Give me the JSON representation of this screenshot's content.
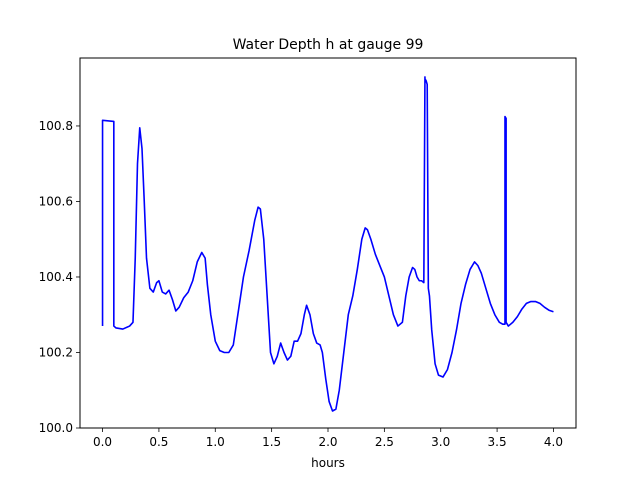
{
  "chart_data": {
    "type": "line",
    "title": "Water Depth h at gauge 99",
    "xlabel": "hours",
    "ylabel": "",
    "xlim": [
      -0.2,
      4.2
    ],
    "ylim": [
      100.0,
      100.98
    ],
    "grid": false,
    "xticks": [
      0.0,
      0.5,
      1.0,
      1.5,
      2.0,
      2.5,
      3.0,
      3.5,
      4.0
    ],
    "xtick_labels": [
      "0.0",
      "0.5",
      "1.0",
      "1.5",
      "2.0",
      "2.5",
      "3.0",
      "3.5",
      "4.0"
    ],
    "yticks": [
      100.0,
      100.2,
      100.4,
      100.6,
      100.8
    ],
    "ytick_labels": [
      "100.0",
      "100.2",
      "100.4",
      "100.6",
      "100.8"
    ],
    "series": [
      {
        "color": "#0000ff",
        "x": [
          0.0,
          0.0,
          0.1,
          0.1,
          0.12,
          0.18,
          0.24,
          0.27,
          0.29,
          0.31,
          0.33,
          0.35,
          0.37,
          0.39,
          0.42,
          0.45,
          0.48,
          0.5,
          0.53,
          0.56,
          0.59,
          0.62,
          0.65,
          0.68,
          0.72,
          0.76,
          0.8,
          0.84,
          0.88,
          0.91,
          0.93,
          0.96,
          1.0,
          1.04,
          1.08,
          1.12,
          1.16,
          1.2,
          1.25,
          1.3,
          1.35,
          1.38,
          1.4,
          1.43,
          1.46,
          1.49,
          1.52,
          1.55,
          1.58,
          1.61,
          1.64,
          1.67,
          1.7,
          1.73,
          1.76,
          1.79,
          1.81,
          1.84,
          1.87,
          1.9,
          1.93,
          1.95,
          1.98,
          2.01,
          2.04,
          2.07,
          2.1,
          2.14,
          2.18,
          2.22,
          2.26,
          2.3,
          2.33,
          2.35,
          2.38,
          2.42,
          2.46,
          2.5,
          2.54,
          2.58,
          2.62,
          2.66,
          2.69,
          2.72,
          2.75,
          2.77,
          2.79,
          2.81,
          2.83,
          2.85,
          2.86,
          2.86,
          2.87,
          2.88,
          2.89,
          2.9,
          2.92,
          2.95,
          2.98,
          3.02,
          3.06,
          3.1,
          3.14,
          3.18,
          3.22,
          3.26,
          3.3,
          3.33,
          3.36,
          3.4,
          3.44,
          3.48,
          3.52,
          3.55,
          3.57,
          3.57,
          3.58,
          3.58,
          3.6,
          3.64,
          3.68,
          3.72,
          3.76,
          3.8,
          3.84,
          3.88,
          3.92,
          3.96,
          4.0
        ],
        "y": [
          100.27,
          100.815,
          100.812,
          100.27,
          100.265,
          100.262,
          100.27,
          100.28,
          100.45,
          100.7,
          100.795,
          100.74,
          100.6,
          100.45,
          100.37,
          100.36,
          100.385,
          100.39,
          100.36,
          100.355,
          100.365,
          100.34,
          100.31,
          100.32,
          100.345,
          100.36,
          100.39,
          100.44,
          100.465,
          100.45,
          100.38,
          100.3,
          100.23,
          100.205,
          100.2,
          100.2,
          100.22,
          100.3,
          100.4,
          100.47,
          100.55,
          100.585,
          100.58,
          100.5,
          100.35,
          100.2,
          100.17,
          100.19,
          100.225,
          100.2,
          100.18,
          100.19,
          100.23,
          100.23,
          100.25,
          100.3,
          100.325,
          100.3,
          100.25,
          100.225,
          100.22,
          100.2,
          100.13,
          100.07,
          100.045,
          100.05,
          100.1,
          100.2,
          100.3,
          100.35,
          100.42,
          100.5,
          100.53,
          100.525,
          100.5,
          100.46,
          100.43,
          100.4,
          100.35,
          100.3,
          100.27,
          100.28,
          100.35,
          100.4,
          100.425,
          100.42,
          100.4,
          100.39,
          100.39,
          100.385,
          100.93,
          100.925,
          100.92,
          100.91,
          100.37,
          100.35,
          100.26,
          100.17,
          100.14,
          100.135,
          100.155,
          100.2,
          100.26,
          100.33,
          100.38,
          100.42,
          100.44,
          100.43,
          100.41,
          100.37,
          100.33,
          100.3,
          100.28,
          100.275,
          100.275,
          100.825,
          100.82,
          100.28,
          100.27,
          100.28,
          100.295,
          100.315,
          100.33,
          100.335,
          100.335,
          100.33,
          100.32,
          100.312,
          100.308
        ]
      }
    ]
  }
}
